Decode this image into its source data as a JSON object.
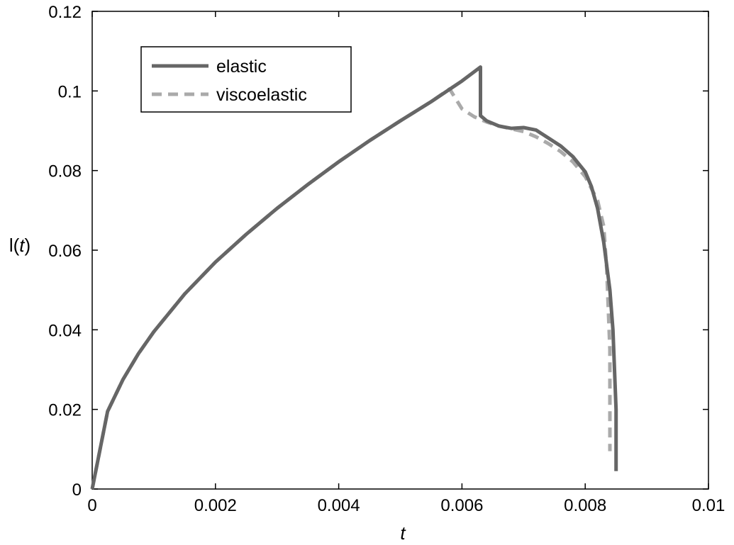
{
  "chart_data": {
    "type": "line",
    "xlabel": "t",
    "ylabel": {
      "prefix": "l(",
      "var": "t",
      "suffix": ")"
    },
    "xlim": [
      0,
      0.01
    ],
    "ylim": [
      0,
      0.12
    ],
    "xticks": [
      "0",
      "0.002",
      "0.004",
      "0.006",
      "0.008",
      "0.01"
    ],
    "xtick_values": [
      0,
      0.002,
      0.004,
      0.006,
      0.008,
      0.01
    ],
    "yticks": [
      "0",
      "0.02",
      "0.04",
      "0.06",
      "0.08",
      "0.1",
      "0.12"
    ],
    "ytick_values": [
      0,
      0.02,
      0.04,
      0.06,
      0.08,
      0.1,
      0.12
    ],
    "grid": false,
    "legend_position": "top-left",
    "series": [
      {
        "name": "elastic",
        "style": "solid",
        "color": "#666666",
        "x": [
          0,
          0.00025,
          0.0005,
          0.00075,
          0.001,
          0.0015,
          0.002,
          0.0025,
          0.003,
          0.0035,
          0.004,
          0.0045,
          0.005,
          0.0055,
          0.006,
          0.0063,
          0.0063,
          0.0064,
          0.0066,
          0.0068,
          0.007,
          0.0072,
          0.0074,
          0.0076,
          0.0078,
          0.008,
          0.0081,
          0.0082,
          0.0083,
          0.0084,
          0.00845,
          0.0085,
          0.0085
        ],
        "y": [
          0,
          0.0195,
          0.0275,
          0.034,
          0.0395,
          0.049,
          0.057,
          0.064,
          0.0705,
          0.0765,
          0.0822,
          0.0875,
          0.0925,
          0.0973,
          0.1025,
          0.106,
          0.0938,
          0.0925,
          0.0912,
          0.0906,
          0.0908,
          0.0902,
          0.0882,
          0.0862,
          0.0835,
          0.0797,
          0.076,
          0.0705,
          0.062,
          0.05,
          0.04,
          0.02,
          0.0045
        ]
      },
      {
        "name": "viscoelastic",
        "style": "dashed",
        "color": "#aaaaaa",
        "x": [
          0,
          0.00025,
          0.0005,
          0.00075,
          0.001,
          0.0015,
          0.002,
          0.0025,
          0.003,
          0.0035,
          0.004,
          0.0045,
          0.005,
          0.0055,
          0.0058,
          0.006,
          0.0062,
          0.0064,
          0.0066,
          0.0068,
          0.007,
          0.0072,
          0.0074,
          0.0076,
          0.0078,
          0.008,
          0.0082,
          0.0083,
          0.00835,
          0.0084,
          0.0084
        ],
        "y": [
          0,
          0.0195,
          0.0275,
          0.034,
          0.0395,
          0.049,
          0.057,
          0.064,
          0.0705,
          0.0765,
          0.0822,
          0.0875,
          0.0925,
          0.0973,
          0.1005,
          0.0955,
          0.0935,
          0.0922,
          0.0912,
          0.0905,
          0.0898,
          0.0885,
          0.0868,
          0.0848,
          0.0822,
          0.0785,
          0.0725,
          0.066,
          0.055,
          0.035,
          0.0095
        ]
      }
    ]
  }
}
